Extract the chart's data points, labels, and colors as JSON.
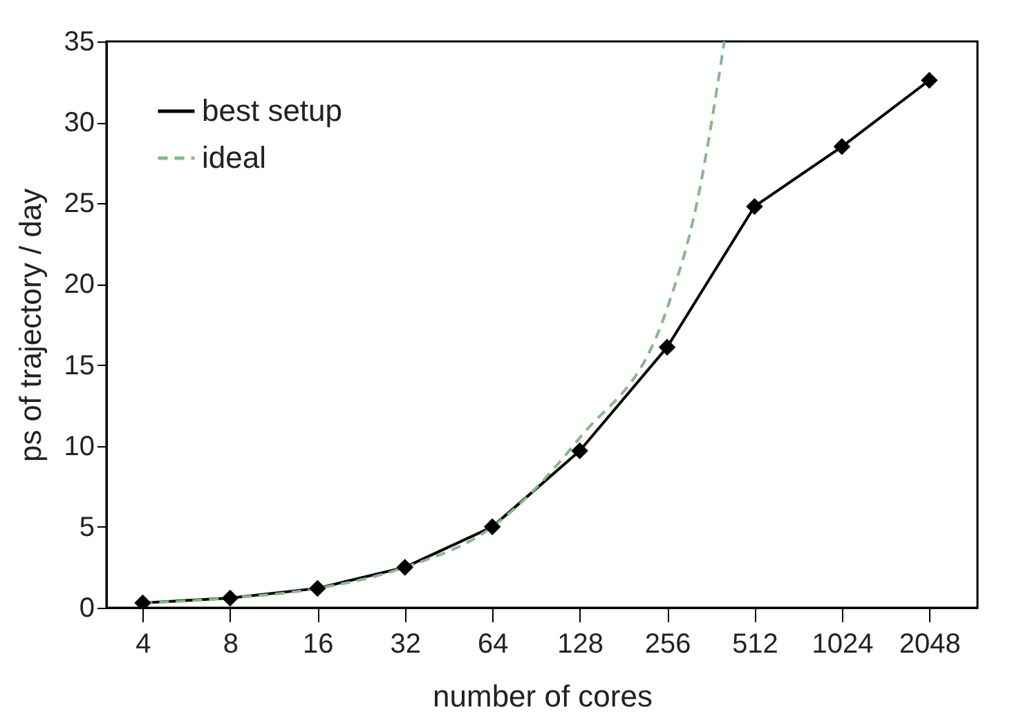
{
  "chart_data": {
    "type": "line",
    "xlabel": "number of cores",
    "ylabel": "ps of trajectory / day",
    "log": "x",
    "xlim": [
      3,
      3000
    ],
    "xticks": [
      4,
      8,
      16,
      32,
      64,
      128,
      256,
      512,
      1024,
      2048
    ],
    "ylim": [
      0,
      35
    ],
    "yticks": [
      0,
      5,
      10,
      15,
      20,
      25,
      30,
      35
    ],
    "grid": false,
    "legend": "top left",
    "series": [
      {
        "name": "best setup",
        "color": "#000000",
        "marker": "diamond",
        "line_style": "solid",
        "x": [
          4,
          8,
          16,
          32,
          64,
          128,
          256,
          512,
          1024,
          2048
        ],
        "values": [
          0.3,
          0.6,
          1.2,
          2.5,
          5.0,
          9.7,
          16.1,
          24.8,
          28.5,
          32.6
        ]
      },
      {
        "name": "ideal",
        "color": "#88b888",
        "marker": "none",
        "line_style": "dashed",
        "x": [
          4,
          8,
          16,
          32,
          64,
          128,
          256,
          324,
          403
        ],
        "values": [
          0.3,
          0.6,
          1.2,
          2.5,
          5,
          10.5,
          18.5,
          25,
          35
        ]
      }
    ]
  }
}
